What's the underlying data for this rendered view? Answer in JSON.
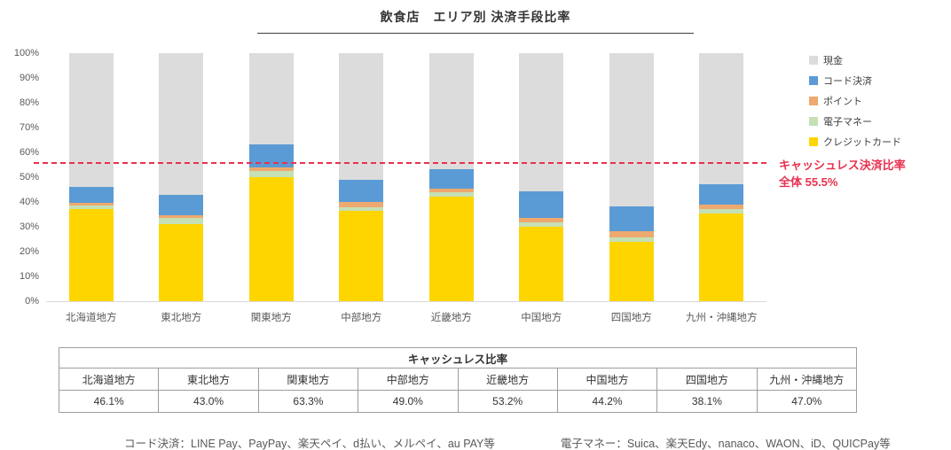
{
  "title": "飲食店　エリア別 決済手段比率",
  "chart_data": {
    "type": "bar",
    "stacked": true,
    "percent_stacked": true,
    "title": "飲食店　エリア別 決済手段比率",
    "categories": [
      "北海道地方",
      "東北地方",
      "関東地方",
      "中部地方",
      "近畿地方",
      "中国地方",
      "四国地方",
      "九州・沖縄地方"
    ],
    "series": [
      {
        "name": "クレジットカード",
        "color": "#ffd500",
        "values": [
          37.0,
          31.0,
          50.0,
          36.5,
          42.0,
          30.0,
          24.0,
          35.5
        ]
      },
      {
        "name": "電子マネー",
        "color": "#c5e0b4",
        "values": [
          1.5,
          2.5,
          2.5,
          1.5,
          2.0,
          1.7,
          1.6,
          1.5
        ]
      },
      {
        "name": "ポイント",
        "color": "#eda96e",
        "values": [
          1.0,
          1.0,
          1.3,
          2.0,
          1.2,
          2.0,
          2.5,
          2.0
        ]
      },
      {
        "name": "コード決済",
        "color": "#5b9bd5",
        "values": [
          6.6,
          8.5,
          9.5,
          9.0,
          8.0,
          10.5,
          10.0,
          8.0
        ]
      },
      {
        "name": "現金",
        "color": "#dcdcdc",
        "values": [
          53.9,
          57.0,
          36.7,
          51.0,
          46.8,
          55.8,
          61.9,
          53.0
        ]
      }
    ],
    "y_ticks": [
      "100%",
      "90%",
      "80%",
      "70%",
      "60%",
      "50%",
      "40%",
      "30%",
      "20%",
      "10%",
      "0%"
    ],
    "ylim": [
      0,
      100
    ],
    "grid": false,
    "legend_position": "right",
    "legend_order": [
      "現金",
      "コード決済",
      "ポイント",
      "電子マネー",
      "クレジットカード"
    ],
    "reference_line": {
      "value": 55.5,
      "color": "#e8314f",
      "style": "dashed"
    },
    "annotation": {
      "line1": "キャッシュレス決済比率",
      "line2": "全体 55.5%"
    }
  },
  "cashless_table": {
    "title": "キャッシュレス比率",
    "regions": [
      "北海道地方",
      "東北地方",
      "関東地方",
      "中部地方",
      "近畿地方",
      "中国地方",
      "四国地方",
      "九州・沖縄地方"
    ],
    "values": [
      "46.1%",
      "43.0%",
      "63.3%",
      "49.0%",
      "53.2%",
      "44.2%",
      "38.1%",
      "47.0%"
    ]
  },
  "footnotes": {
    "code_payment": "コード決済：LINE Pay、PayPay、楽天ペイ、d払い、メルペイ、au PAY等",
    "emoney": "電子マネー：Suica、楽天Edy、nanaco、WAON、iD、QUICPay等"
  }
}
